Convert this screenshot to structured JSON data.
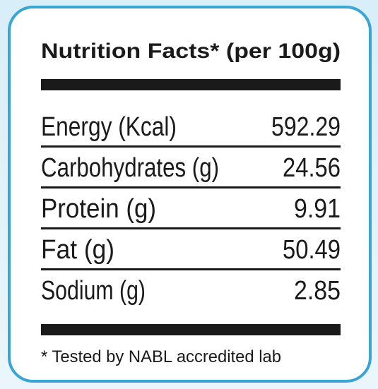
{
  "header": {
    "title": "Nutrition Facts* (per 100g)"
  },
  "table": {
    "rows": [
      [
        "Energy (Kcal)",
        "592.29"
      ],
      [
        "Carbohydrates (g)",
        "24.56"
      ],
      [
        "Protein (g)",
        "9.91"
      ],
      [
        "Fat (g)",
        "50.49"
      ],
      [
        "Sodium (g)",
        "2.85"
      ]
    ]
  },
  "footnote": "* Tested by NABL accredited lab"
}
